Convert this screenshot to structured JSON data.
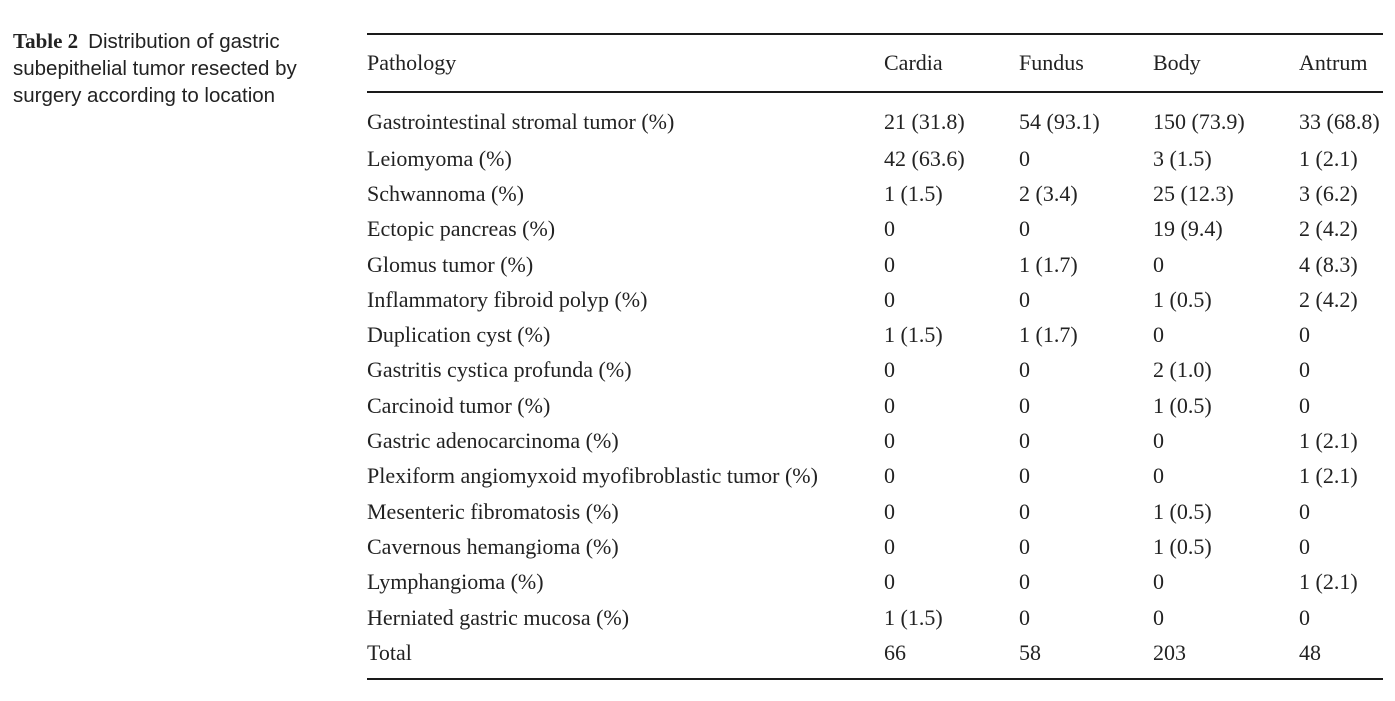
{
  "caption": {
    "label": "Table 2",
    "text": "Distribution of gastric subepithelial tumor resected by surgery according to location"
  },
  "table": {
    "headers": [
      "Pathology",
      "Cardia",
      "Fundus",
      "Body",
      "Antrum"
    ],
    "rows": [
      [
        "Gastrointestinal stromal tumor (%)",
        "21 (31.8)",
        "54 (93.1)",
        "150 (73.9)",
        "33 (68.8)"
      ],
      [
        "Leiomyoma (%)",
        "42 (63.6)",
        "0",
        "3 (1.5)",
        "1 (2.1)"
      ],
      [
        "Schwannoma (%)",
        "1 (1.5)",
        "2 (3.4)",
        "25 (12.3)",
        "3 (6.2)"
      ],
      [
        "Ectopic pancreas (%)",
        "0",
        "0",
        "19 (9.4)",
        "2 (4.2)"
      ],
      [
        "Glomus tumor (%)",
        "0",
        "1 (1.7)",
        "0",
        "4 (8.3)"
      ],
      [
        "Inflammatory fibroid polyp (%)",
        "0",
        "0",
        "1 (0.5)",
        "2 (4.2)"
      ],
      [
        "Duplication cyst (%)",
        "1 (1.5)",
        "1 (1.7)",
        "0",
        "0"
      ],
      [
        "Gastritis cystica profunda (%)",
        "0",
        "0",
        "2 (1.0)",
        "0"
      ],
      [
        "Carcinoid tumor (%)",
        "0",
        "0",
        "1 (0.5)",
        "0"
      ],
      [
        "Gastric adenocarcinoma (%)",
        "0",
        "0",
        "0",
        "1 (2.1)"
      ],
      [
        "Plexiform angiomyxoid myofibroblastic tumor (%)",
        "0",
        "0",
        "0",
        "1 (2.1)"
      ],
      [
        "Mesenteric fibromatosis (%)",
        "0",
        "0",
        "1 (0.5)",
        "0"
      ],
      [
        "Cavernous hemangioma (%)",
        "0",
        "0",
        "1 (0.5)",
        "0"
      ],
      [
        "Lymphangioma (%)",
        "0",
        "0",
        "0",
        "1 (2.1)"
      ],
      [
        "Herniated gastric mucosa (%)",
        "1 (1.5)",
        "0",
        "0",
        "0"
      ],
      [
        "Total",
        "66",
        "58",
        "203",
        "48"
      ]
    ]
  }
}
